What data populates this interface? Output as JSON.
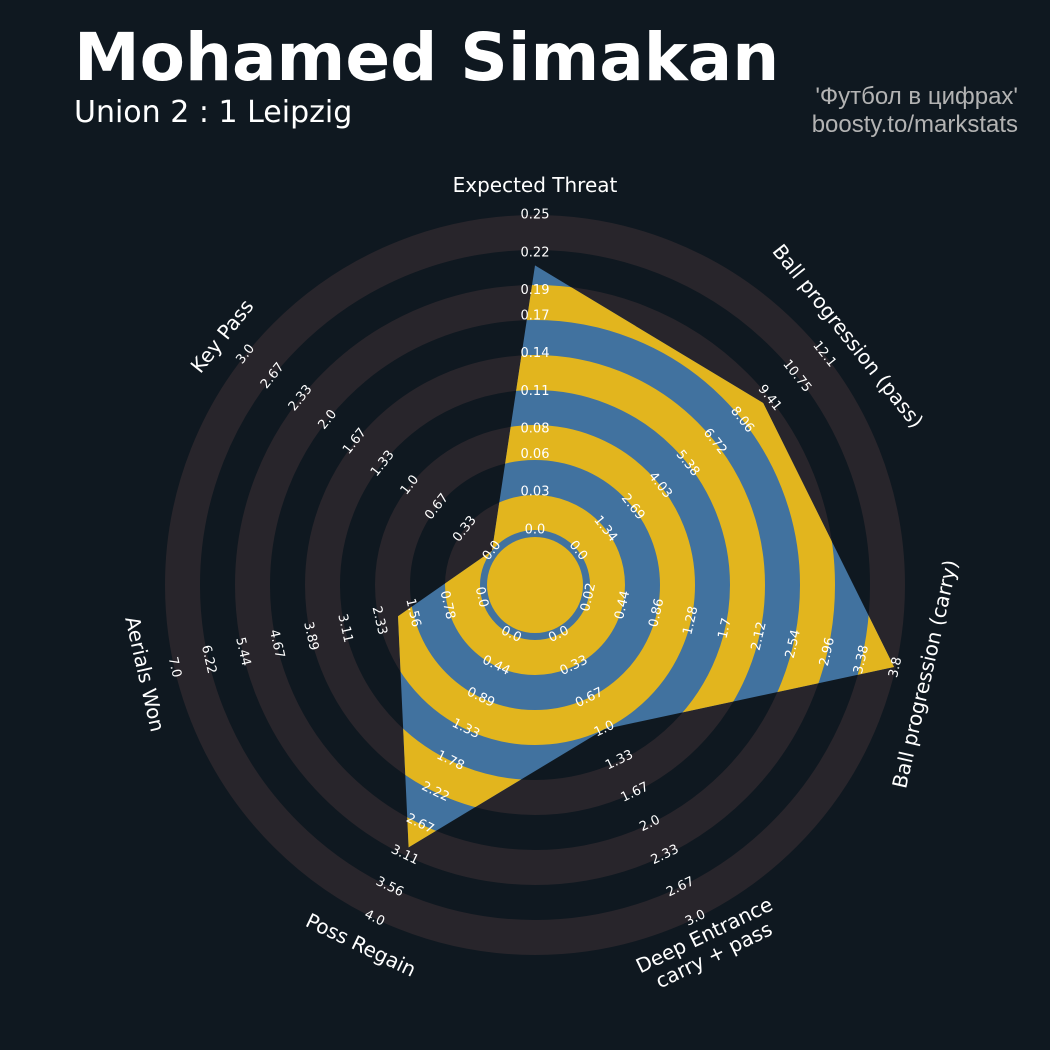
{
  "chart_data": {
    "type": "radar",
    "title": "Mohamed Simakan",
    "subtitle": "Union 2 : 1 Leipzig",
    "credits": [
      "'Футбол в цифрах'",
      "boosty.to/markstats"
    ],
    "params": [
      {
        "name": "Expected Threat",
        "lim": [
          0,
          0.25
        ],
        "ticks": [
          {
            "value": 0,
            "label": "0.0"
          },
          0.03,
          0.06,
          0.08,
          0.11,
          0.14,
          0.17,
          0.19,
          0.22,
          0.25
        ]
      },
      {
        "name": "Ball progression (pass)",
        "lim": [
          0,
          12.1
        ],
        "ticks": [
          {
            "value": 0,
            "label": "0.0"
          },
          1.34,
          2.69,
          4.03,
          5.38,
          6.72,
          8.06,
          9.41,
          10.75,
          12.1
        ]
      },
      {
        "name": "Ball progression (carry)",
        "lim": [
          0.02,
          3.8
        ],
        "ticks": [
          0.02,
          0.44,
          0.86,
          1.28,
          1.7,
          2.12,
          2.54,
          2.96,
          3.38,
          3.8
        ]
      },
      {
        "name": "Deep Entrance\ncarry + pass",
        "lim": [
          0,
          3
        ],
        "ticks": [
          {
            "value": 0,
            "label": "0.0"
          },
          0.33,
          0.67,
          {
            "value": 1,
            "label": "1.0"
          },
          1.33,
          1.67,
          {
            "value": 2,
            "label": "2.0"
          },
          2.33,
          2.67,
          {
            "value": 3,
            "label": "3.0"
          }
        ]
      },
      {
        "name": "Poss Regain",
        "lim": [
          0,
          4
        ],
        "ticks": [
          {
            "value": 0,
            "label": "0.0"
          },
          0.44,
          0.89,
          1.33,
          1.78,
          2.22,
          2.67,
          3.11,
          3.56,
          {
            "value": 4,
            "label": "4.0"
          }
        ]
      },
      {
        "name": "Aerials Won",
        "lim": [
          0,
          7
        ],
        "ticks": [
          {
            "value": 0,
            "label": "0.0"
          },
          0.78,
          1.56,
          2.33,
          3.11,
          3.89,
          4.67,
          5.44,
          6.22,
          {
            "value": 7,
            "label": "7.0"
          }
        ]
      },
      {
        "name": "Key Pass",
        "lim": [
          0,
          3
        ],
        "ticks": [
          {
            "value": 0,
            "label": "0.0"
          },
          0.33,
          0.67,
          {
            "value": 1,
            "label": "1.0"
          },
          1.33,
          1.67,
          {
            "value": 2,
            "label": "2.0"
          },
          2.33,
          2.67,
          {
            "value": 3,
            "label": "3.0"
          }
        ]
      }
    ],
    "values": [
      0.21,
      9.1,
      3.78,
      1.0,
      3.0,
      1.9,
      0
    ],
    "color": "#41729f",
    "alt_color": "#e2b51e",
    "ring_color": "#28252b",
    "background": "#0f1820"
  }
}
